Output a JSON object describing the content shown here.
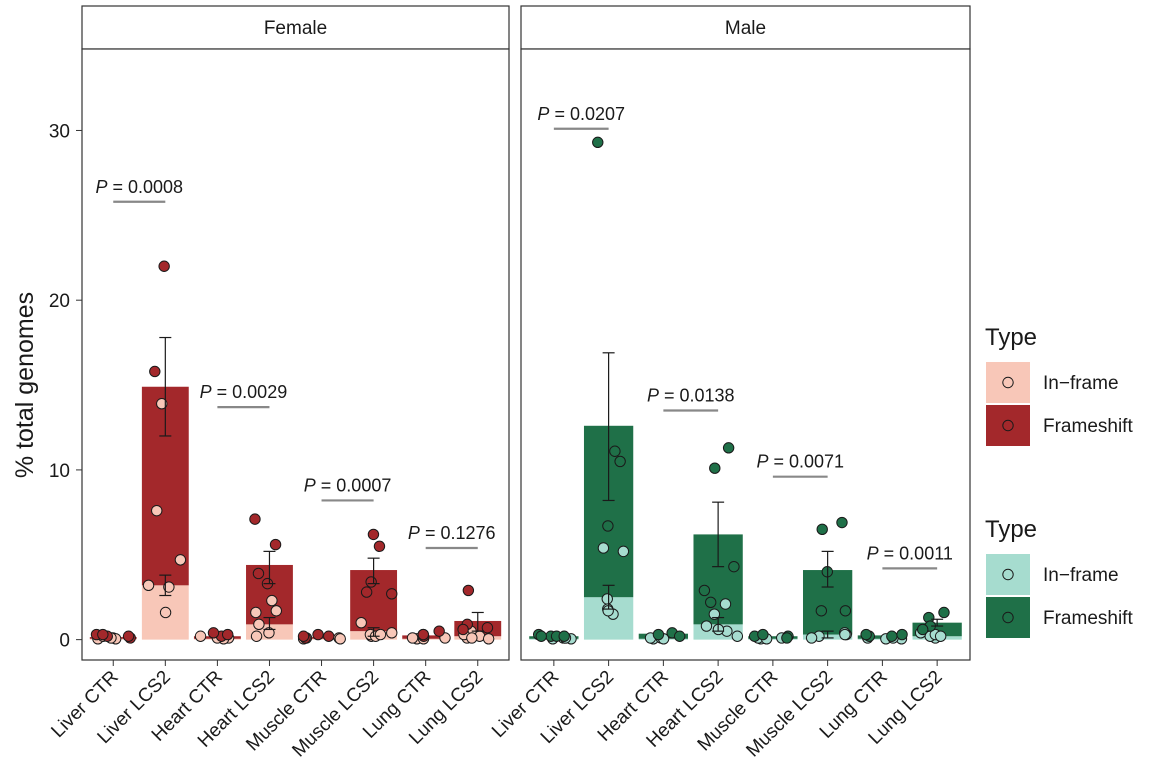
{
  "chart_data": {
    "type": "bar",
    "ylabel": "% total genomes",
    "yticks": [
      0,
      10,
      20,
      30
    ],
    "ylim": [
      -1.2,
      34.8
    ],
    "categories": [
      "Liver CTR",
      "Liver LCS2",
      "Heart CTR",
      "Heart LCS2",
      "Muscle CTR",
      "Muscle LCS2",
      "Lung CTR",
      "Lung LCS2"
    ],
    "grid": false,
    "legend_position": "right",
    "legends": [
      {
        "title": "Type",
        "items": [
          {
            "label": "In−frame",
            "color": "#f8c7b8"
          },
          {
            "label": "Frameshift",
            "color": "#a3282b"
          }
        ]
      },
      {
        "title": "Type",
        "items": [
          {
            "label": "In−frame",
            "color": "#a6dccf"
          },
          {
            "label": "Frameshift",
            "color": "#1f7048"
          }
        ]
      }
    ],
    "panels": [
      {
        "title": "Female",
        "colors": {
          "inframe": "#f8c7b8",
          "frameshift": "#a3282b"
        },
        "inframe": [
          0.05,
          3.2,
          0.05,
          0.9,
          0.05,
          0.5,
          0.05,
          0.2
        ],
        "frameshift": [
          0.1,
          11.7,
          0.15,
          3.5,
          0.1,
          3.6,
          0.2,
          0.9
        ],
        "error": [
          null,
          [
            12.0,
            17.8
          ],
          null,
          [
            3.3,
            5.2
          ],
          null,
          [
            3.3,
            4.8
          ],
          null,
          [
            0.5,
            1.6
          ]
        ],
        "error_inframe": [
          null,
          [
            2.6,
            3.8
          ],
          null,
          [
            0.6,
            1.3
          ],
          null,
          [
            0.2,
            0.7
          ],
          null,
          null
        ],
        "points_inframe": [
          [
            0.1,
            0.05,
            0.05,
            0.2,
            0.1
          ],
          [
            1.6,
            3.2,
            4.7,
            3.1,
            13.9,
            7.6
          ],
          [
            0.1,
            0.05,
            0.2,
            0.1
          ],
          [
            0.9,
            1.7,
            1.6,
            2.3,
            0.4,
            0.2
          ],
          [
            0.05,
            0.1,
            0.05,
            0.1
          ],
          [
            0.2,
            0.4,
            1.0,
            0.3,
            0.2,
            0.3
          ],
          [
            0.05,
            0.1,
            0.1,
            0.05
          ],
          [
            0.1,
            0.2,
            0.5,
            0.3,
            0.05,
            0.1
          ]
        ],
        "points_frameshift": [
          [
            0.2,
            0.3,
            0.1,
            0.3,
            0.2
          ],
          [
            22.0,
            15.8
          ],
          [
            0.2,
            0.4,
            0.3
          ],
          [
            5.6,
            7.1,
            3.9,
            3.3
          ],
          [
            0.1,
            0.2,
            0.3,
            0.2
          ],
          [
            5.5,
            2.7,
            2.8,
            3.4,
            6.2
          ],
          [
            0.3,
            0.5,
            0.2,
            0.3
          ],
          [
            2.9,
            0.9,
            0.7,
            0.6
          ]
        ],
        "pvalues": [
          {
            "label": "P = 0.0008",
            "y": 25.8
          },
          {
            "label": "P = 0.0029",
            "y": 13.7
          },
          {
            "label": "P = 0.0007",
            "y": 8.2
          },
          {
            "label": "P = 0.1276",
            "y": 5.4
          }
        ]
      },
      {
        "title": "Male",
        "colors": {
          "inframe": "#a6dccf",
          "frameshift": "#1f7048"
        },
        "inframe": [
          0.05,
          2.5,
          0.05,
          0.9,
          0.05,
          0.3,
          0.05,
          0.2
        ],
        "frameshift": [
          0.15,
          10.1,
          0.3,
          5.3,
          0.15,
          3.8,
          0.2,
          0.8
        ],
        "error": [
          null,
          [
            8.2,
            16.9
          ],
          null,
          [
            4.3,
            8.1
          ],
          null,
          [
            3.1,
            5.2
          ],
          null,
          [
            0.8,
            1.2
          ]
        ],
        "error_inframe": [
          null,
          [
            1.8,
            3.2
          ],
          null,
          [
            0.5,
            1.3
          ],
          null,
          [
            0.1,
            0.5
          ],
          null,
          null
        ],
        "points_inframe": [
          [
            0.1,
            0.05,
            0.1,
            0.05,
            0.1
          ],
          [
            2.4,
            1.8,
            1.5,
            1.7,
            5.2,
            5.4
          ],
          [
            0.05,
            0.1,
            0.05,
            0.1
          ],
          [
            2.1,
            1.5,
            0.5,
            0.2,
            0.6,
            0.8
          ],
          [
            0.1,
            0.05,
            0.1,
            0.05
          ],
          [
            0.3,
            0.4,
            0.2,
            0.1,
            0.3
          ],
          [
            0.05,
            0.1,
            0.05,
            0.1
          ],
          [
            0.1,
            0.2,
            0.4,
            0.3,
            0.2
          ]
        ],
        "points_frameshift": [
          [
            0.2,
            0.2,
            0.2,
            0.3,
            0.2
          ],
          [
            29.3,
            11.1,
            10.5,
            6.7
          ],
          [
            0.3,
            0.4,
            0.2
          ],
          [
            11.3,
            10.1,
            4.3,
            2.9,
            2.2
          ],
          [
            0.2,
            0.2,
            0.1,
            0.3
          ],
          [
            6.9,
            6.5,
            4.0,
            1.7,
            1.7
          ],
          [
            0.3,
            0.2,
            0.2,
            0.3
          ],
          [
            1.6,
            1.3,
            0.8,
            0.6
          ]
        ],
        "pvalues": [
          {
            "label": "P = 0.0207",
            "y": 30.1
          },
          {
            "label": "P = 0.0138",
            "y": 13.5
          },
          {
            "label": "P = 0.0071",
            "y": 9.6
          },
          {
            "label": "P = 0.0011",
            "y": 4.2
          }
        ]
      }
    ]
  }
}
